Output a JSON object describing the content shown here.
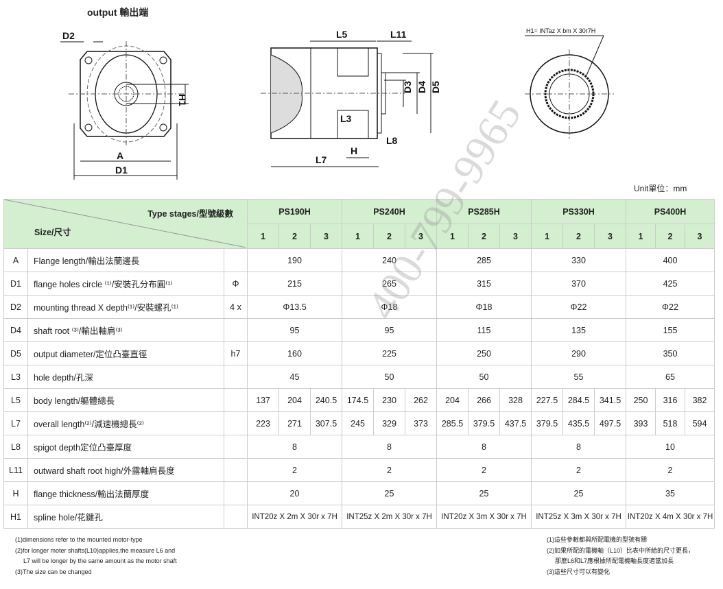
{
  "title": "output 輸出端",
  "drawing_labels": {
    "D2": "D2",
    "H1": "H1",
    "A": "A",
    "D1": "D1",
    "L5": "L5",
    "L11": "L11",
    "D3": "D3",
    "D4": "D4",
    "D5": "D5",
    "L3": "L3",
    "L8": "L8",
    "H": "H",
    "L7": "L7",
    "spline": "H1= INTaz X bm X 30r7H"
  },
  "unit_label": "Unit單位：mm",
  "table": {
    "type_header": "Type stages/型號級數",
    "size_header": "Size/尺寸",
    "models": [
      "PS190H",
      "PS240H",
      "PS285H",
      "PS330H",
      "PS400H"
    ],
    "stages": [
      "1",
      "2",
      "3"
    ],
    "rows": [
      {
        "code": "A",
        "label": "Flange length/輸出法蘭邊長",
        "unit": "",
        "values": [
          "190",
          "240",
          "285",
          "330",
          "400"
        ]
      },
      {
        "code": "D1",
        "label": "flange holes circle ⁽¹⁾/安裝孔分布圓⁽¹⁾",
        "unit": "Φ",
        "values": [
          "215",
          "265",
          "315",
          "370",
          "425"
        ]
      },
      {
        "code": "D2",
        "label": "mounting thread X depth⁽¹⁾/安裝螺孔⁽¹⁾",
        "unit": "4 x",
        "values": [
          "Φ13.5",
          "Φ18",
          "Φ18",
          "Φ22",
          "Φ22"
        ]
      },
      {
        "code": "D4",
        "label": "shaft root ⁽³⁾/輸出軸肩⁽³⁾",
        "unit": "",
        "values": [
          "95",
          "95",
          "115",
          "135",
          "155"
        ]
      },
      {
        "code": "D5",
        "label": "output diameter/定位凸臺直徑",
        "unit": "h7",
        "values": [
          "160",
          "225",
          "250",
          "290",
          "350"
        ]
      },
      {
        "code": "L3",
        "label": "hole depth/孔深",
        "unit": "",
        "values": [
          "45",
          "50",
          "50",
          "55",
          "65"
        ]
      },
      {
        "code": "L5",
        "label": "body length/軀體總長",
        "unit": "",
        "stage_values": [
          "137",
          "204",
          "240.5",
          "174.5",
          "230",
          "262",
          "204",
          "266",
          "328",
          "227.5",
          "284.5",
          "341.5",
          "250",
          "316",
          "382"
        ]
      },
      {
        "code": "L7",
        "label": "overall length⁽²⁾/減速機總長⁽²⁾",
        "unit": "",
        "stage_values": [
          "223",
          "271",
          "307.5",
          "245",
          "329",
          "373",
          "285.5",
          "379.5",
          "437.5",
          "379.5",
          "435.5",
          "497.5",
          "393",
          "518",
          "594"
        ]
      },
      {
        "code": "L8",
        "label": "spigot depth定位凸臺厚度",
        "unit": "",
        "values": [
          "8",
          "8",
          "8",
          "8",
          "10"
        ]
      },
      {
        "code": "L11",
        "label": "outward shaft root high/外露軸肩長度",
        "unit": "",
        "values": [
          "2",
          "2",
          "2",
          "2",
          "2"
        ]
      },
      {
        "code": "H",
        "label": "flange thickness/輸出法蘭厚度",
        "unit": "",
        "values": [
          "20",
          "25",
          "25",
          "25",
          "35"
        ]
      },
      {
        "code": "H1",
        "label": "spline hole/花鍵孔",
        "unit": "",
        "values": [
          "INT20z X 2m X 30r x 7H",
          "INT25z X 2m X 30r x 7H",
          "INT20z X 3m X 30r x 7H",
          "INT25z X 3m X 30r x 7H",
          "INT20z X 4m X 30r x 7H"
        ]
      }
    ]
  },
  "notes_en": [
    "(1)dimensions refer to the mounted motor-type",
    "(2)for longer moter shafts(L10)applies,the measure L6 and",
    "L7 will be longer by the same amount as the motor shaft",
    "(3)The size can be changed"
  ],
  "notes_zh": [
    "(1)這些參數都與所配電機的型號有關",
    "(2)如果所配的電機軸（L10）比表中所給的尺寸更長，",
    "那麼L6和L7應根據所配電機軸長度適當加長",
    "(3)這些尺寸可以有變化"
  ],
  "watermark": "400-799-9965",
  "colors": {
    "header_bg": "#d3efcf"
  }
}
